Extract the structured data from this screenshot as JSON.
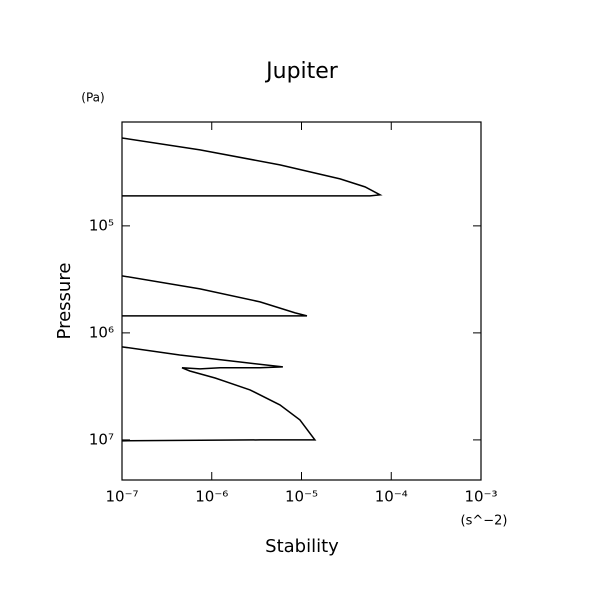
{
  "chart_data": {
    "type": "line",
    "title": "Jupiter",
    "x_label": "Stability",
    "x_unit": "(s^−2)",
    "y_label": "Pressure",
    "y_unit": "(Pa)",
    "x_log": true,
    "y_log": true,
    "y_inverted": true,
    "grid": false,
    "xlim": [
      1e-07,
      0.001
    ],
    "ylim": [
      10700,
      23700000
    ],
    "xticks": [
      {
        "value": 1e-07,
        "label": "10⁻⁷"
      },
      {
        "value": 1e-06,
        "label": "10⁻⁶"
      },
      {
        "value": 1e-05,
        "label": "10⁻⁵"
      },
      {
        "value": 0.0001,
        "label": "10⁻⁴"
      },
      {
        "value": 0.001,
        "label": "10⁻³"
      }
    ],
    "yticks": [
      {
        "value": 100000,
        "label": "10⁵"
      },
      {
        "value": 1000000,
        "label": "10⁶"
      },
      {
        "value": 10000000,
        "label": "10⁷"
      }
    ],
    "series": [
      {
        "color": "#000000",
        "x": [
          1e-07,
          7.4e-07,
          5.75e-06,
          2.69e-05,
          5.1e-05,
          7.5e-05,
          5.8e-05,
          1e-07,
          null,
          1e-07,
          7.4e-07,
          3.45e-06,
          8.5e-06,
          1.15e-05,
          7.45e-06,
          1e-07,
          null,
          1e-07,
          4.4e-07,
          2.07e-06,
          6.2e-06,
          3.45e-06,
          1.24e-06,
          7.4e-07,
          4.66e-07,
          5.7e-07,
          1.09e-06,
          2.67e-06,
          5.75e-06,
          9.6e-06,
          1.41e-05,
          3.45e-06,
          1e-07
        ],
        "values": [
          15100,
          19500,
          26900,
          36400,
          43200,
          51300,
          52400,
          52400,
          null,
          293000,
          388000,
          513000,
          650000,
          693000,
          693000,
          693000,
          null,
          1350000,
          1610000,
          1870000,
          2080000,
          2120000,
          2120000,
          2170000,
          2120000,
          2270000,
          2640000,
          3410000,
          4710000,
          6500000,
          10000000,
          10000000,
          10200000
        ]
      }
    ]
  }
}
